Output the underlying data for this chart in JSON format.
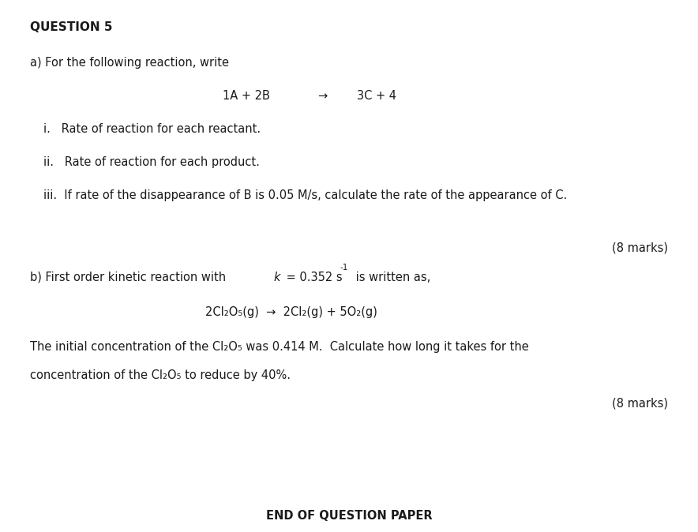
{
  "bg_color": "#ffffff",
  "text_color": "#1a1a1a",
  "figsize": [
    8.84,
    6.74
  ],
  "dpi": 100,
  "title": "QUESTION 5",
  "section_a_intro": "a) For the following reaction, write",
  "reaction_lhs": "1A + 2B",
  "reaction_arrow": "→",
  "reaction_rhs": "3C + 4",
  "point_i": "i.   Rate of reaction for each reactant.",
  "point_ii": "ii.   Rate of reaction for each product.",
  "point_iii": "iii.  If rate of the disappearance of B is 0.05 M/s, calculate the rate of the appearance of C.",
  "marks_a": "(8 marks)",
  "sb_pre": "b) First order kinetic reaction with ",
  "sb_k": "k",
  "sb_post": " = 0.352 s",
  "sb_sup": "-1",
  "sb_end": " is written as,",
  "reaction2": "2Cl₂O₅(g)  →  2Cl₂(g) + 5O₂(g)",
  "para1": "The initial concentration of the Cl₂O₅ was 0.414 M.  Calculate how long it takes for the",
  "para2": "concentration of the Cl₂O₅ to reduce by 40%.",
  "marks_b": "(8 marks)",
  "footer": "END OF QUESTION PAPER",
  "fs_title": 11,
  "fs_body": 10.5,
  "fs_footer": 10.5
}
